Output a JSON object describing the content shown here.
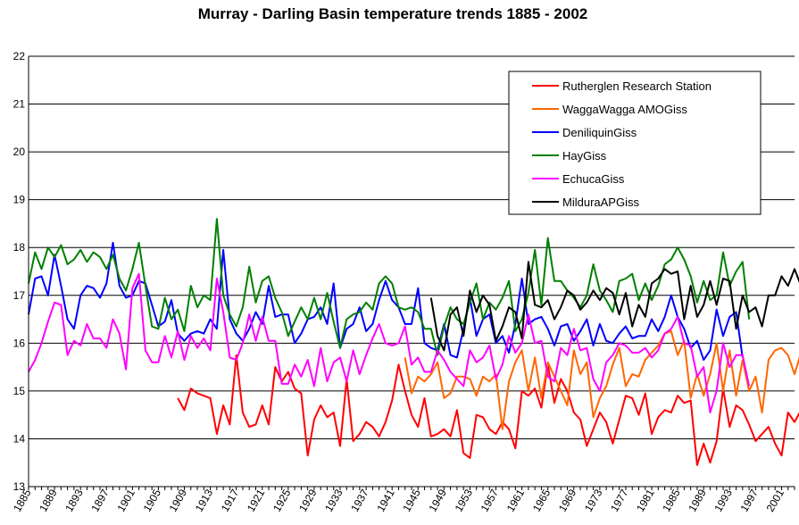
{
  "chart_data": {
    "type": "line",
    "title": "Murray - Darling Basin temperature trends 1885 - 2002",
    "xlabel": "",
    "ylabel": "",
    "ylim": [
      13,
      22
    ],
    "yticks": [
      13,
      14,
      15,
      16,
      17,
      18,
      19,
      20,
      21,
      22
    ],
    "xlim": [
      1885,
      2003
    ],
    "xticks": [
      1885,
      1889,
      1893,
      1897,
      1901,
      1905,
      1909,
      1913,
      1917,
      1921,
      1925,
      1929,
      1933,
      1937,
      1941,
      1945,
      1949,
      1953,
      1957,
      1961,
      1965,
      1969,
      1973,
      1977,
      1981,
      1985,
      1989,
      1993,
      1997,
      2001
    ],
    "xtick_labels": [
      "1885",
      "1889",
      "1893",
      "1897",
      "1901",
      "1905",
      "1909",
      "1913",
      "1917",
      "1921",
      "1925",
      "1929",
      "1933",
      "1937",
      "1941",
      "1945",
      "1949",
      "1953",
      "1957",
      "1961",
      "1965",
      "1969",
      "1973",
      "1977",
      "1981",
      "1985",
      "1989",
      "1993",
      "1997",
      "2001"
    ],
    "grid": true,
    "legend_position": "top-right",
    "series": [
      {
        "name": "Rutherglen Research Station",
        "color": "#ff0000",
        "start": 1908,
        "values": [
          14.85,
          14.6,
          15.05,
          14.95,
          14.9,
          14.85,
          14.1,
          14.7,
          14.3,
          15.75,
          14.55,
          14.25,
          14.3,
          14.7,
          14.3,
          15.5,
          15.2,
          15.4,
          15.05,
          14.95,
          13.65,
          14.4,
          14.7,
          14.45,
          14.55,
          13.85,
          15.25,
          13.95,
          14.1,
          14.35,
          14.25,
          14.05,
          14.35,
          14.8,
          15.55,
          15.0,
          14.5,
          14.25,
          14.85,
          14.05,
          14.1,
          14.2,
          14.05,
          14.6,
          13.7,
          13.6,
          14.5,
          14.45,
          14.2,
          14.1,
          14.35,
          14.2,
          13.8,
          15.0,
          14.9,
          15.05,
          14.65,
          15.55,
          14.75,
          15.25,
          15.0,
          14.55,
          14.4,
          13.85,
          14.2,
          14.55,
          14.35,
          13.9,
          14.4,
          14.9,
          14.85,
          14.5,
          14.95,
          14.1,
          14.45,
          14.6,
          14.55,
          14.9,
          14.75,
          14.8,
          13.45,
          13.9,
          13.5,
          13.95,
          15.05,
          14.25,
          14.7,
          14.6,
          14.3,
          13.95,
          14.1,
          14.25,
          13.9,
          13.65,
          14.55,
          14.35,
          14.6
        ]
      },
      {
        "name": "WaggaWagga AMOGiss",
        "color": "#ff6600",
        "start": 1943,
        "values": [
          15.7,
          14.95,
          15.3,
          15.2,
          15.35,
          15.6,
          14.85,
          14.95,
          15.3,
          15.3,
          15.25,
          14.9,
          15.3,
          15.2,
          15.35,
          14.2,
          15.2,
          15.6,
          15.85,
          15.0,
          15.7,
          14.85,
          15.6,
          15.3,
          15.0,
          14.7,
          15.85,
          15.35,
          15.6,
          14.45,
          14.85,
          15.1,
          15.55,
          15.9,
          15.1,
          15.35,
          15.3,
          15.65,
          15.8,
          15.95,
          16.2,
          16.25,
          15.75,
          16.05,
          14.85,
          15.35,
          14.9,
          15.35,
          16.0,
          15.0,
          15.85,
          14.9,
          15.65,
          15.0,
          15.3,
          14.55,
          15.65,
          15.85,
          15.9,
          15.75,
          15.35,
          15.8,
          15.75
        ]
      },
      {
        "name": "DeniliquinGiss",
        "color": "#0000ff",
        "start": 1885,
        "values": [
          16.6,
          17.35,
          17.4,
          17.0,
          17.85,
          17.2,
          16.5,
          16.3,
          17.0,
          17.2,
          17.15,
          16.95,
          17.25,
          18.1,
          17.2,
          16.95,
          17.0,
          17.3,
          17.25,
          16.8,
          16.35,
          16.45,
          16.9,
          16.2,
          16.05,
          16.2,
          16.25,
          16.2,
          16.5,
          16.3,
          17.95,
          16.5,
          16.2,
          16.05,
          16.3,
          16.65,
          16.4,
          17.2,
          16.55,
          16.6,
          16.6,
          16.0,
          16.2,
          16.5,
          16.55,
          16.75,
          16.4,
          17.25,
          15.9,
          16.3,
          16.4,
          16.75,
          16.25,
          16.4,
          16.9,
          17.3,
          16.9,
          16.75,
          16.4,
          16.4,
          17.15,
          16.0,
          15.9,
          15.85,
          16.4,
          15.75,
          15.7,
          16.3,
          16.95,
          16.15,
          16.5,
          16.6,
          16.0,
          16.15,
          15.8,
          16.4,
          17.35,
          16.4,
          16.5,
          16.55,
          16.3,
          15.95,
          16.35,
          16.4,
          16.05,
          16.25,
          16.5,
          15.95,
          16.4,
          16.05,
          16.0,
          16.2,
          16.35,
          16.1,
          16.15,
          16.15,
          16.5,
          16.25,
          16.55,
          17.0,
          16.55,
          16.3,
          15.9,
          16.05,
          15.65,
          15.85,
          16.7,
          16.15,
          16.55,
          16.65,
          15.7
        ]
      },
      {
        "name": "HayGiss",
        "color": "#008000",
        "start": 1885,
        "values": [
          17.25,
          17.9,
          17.55,
          18.0,
          17.8,
          18.05,
          17.65,
          17.75,
          17.95,
          17.7,
          17.9,
          17.8,
          17.55,
          17.85,
          17.35,
          17.1,
          17.55,
          18.1,
          17.2,
          16.35,
          16.3,
          16.95,
          16.5,
          16.7,
          16.25,
          17.2,
          16.75,
          17.0,
          16.9,
          18.6,
          17.0,
          16.6,
          16.35,
          16.75,
          17.6,
          16.85,
          17.3,
          17.4,
          16.95,
          16.65,
          16.15,
          16.45,
          16.75,
          16.5,
          16.95,
          16.5,
          17.05,
          16.45,
          15.9,
          16.5,
          16.6,
          16.65,
          16.85,
          16.7,
          17.25,
          17.4,
          17.25,
          16.75,
          16.7,
          16.75,
          16.65,
          16.3,
          16.3,
          15.75,
          16.35,
          16.75,
          16.5,
          16.4,
          16.85,
          17.25,
          16.5,
          16.85,
          16.7,
          16.95,
          17.3,
          16.25,
          16.5,
          17.05,
          17.95,
          16.8,
          18.2,
          17.3,
          17.3,
          17.1,
          16.95,
          16.75,
          17.0,
          17.65,
          17.1,
          16.9,
          16.65,
          17.3,
          17.35,
          17.45,
          16.9,
          17.25,
          16.9,
          17.2,
          17.65,
          17.75,
          18.0,
          17.75,
          17.4,
          16.85,
          17.3,
          16.9,
          17.0,
          17.9,
          17.2,
          17.5,
          17.7,
          16.5
        ]
      },
      {
        "name": "EchucaGiss",
        "color": "#ff00ff",
        "start": 1885,
        "values": [
          15.4,
          15.65,
          16.0,
          16.45,
          16.85,
          16.8,
          15.75,
          16.05,
          15.95,
          16.4,
          16.1,
          16.1,
          15.9,
          16.5,
          16.2,
          15.45,
          17.15,
          17.45,
          15.85,
          15.6,
          15.6,
          16.15,
          15.7,
          16.25,
          15.65,
          16.15,
          15.9,
          16.1,
          15.85,
          17.35,
          16.65,
          15.7,
          15.65,
          16.0,
          16.6,
          16.05,
          16.55,
          16.05,
          16.05,
          15.15,
          15.15,
          15.55,
          15.3,
          15.65,
          15.1,
          15.9,
          15.2,
          15.6,
          15.7,
          15.2,
          15.85,
          15.35,
          15.75,
          16.1,
          16.4,
          16.0,
          15.95,
          16.0,
          16.35,
          15.55,
          15.7,
          15.4,
          15.4,
          15.85,
          15.65,
          15.4,
          15.25,
          15.1,
          15.85,
          15.6,
          15.7,
          15.95,
          15.25,
          15.55,
          16.15,
          15.8,
          16.0,
          16.6,
          16.0,
          16.05,
          15.3,
          15.2,
          15.9,
          15.75,
          16.3,
          15.85,
          15.9,
          15.25,
          15.0,
          15.6,
          15.75,
          16.0,
          15.95,
          15.8,
          15.8,
          15.9,
          15.7,
          15.85,
          16.2,
          16.3,
          16.55,
          16.0,
          15.95,
          15.3,
          15.5,
          14.55,
          15.0,
          16.0,
          15.5,
          15.75,
          15.75,
          15.1
        ]
      },
      {
        "name": "MilduraAPGiss",
        "color": "#000000",
        "start": 1947,
        "values": [
          16.95,
          16.15,
          15.85,
          16.6,
          16.75,
          16.15,
          17.1,
          16.65,
          17.0,
          16.8,
          16.05,
          16.35,
          16.75,
          16.65,
          16.1,
          17.7,
          16.8,
          16.75,
          16.9,
          16.5,
          16.75,
          17.1,
          17.0,
          16.7,
          16.85,
          17.1,
          16.9,
          17.15,
          17.05,
          16.6,
          17.05,
          16.35,
          16.8,
          16.55,
          17.25,
          17.35,
          17.55,
          17.45,
          17.5,
          16.5,
          17.2,
          16.55,
          16.8,
          17.3,
          16.8,
          17.35,
          17.3,
          16.3,
          17.0,
          16.65,
          16.75,
          16.35,
          17.0,
          17.0,
          17.4,
          17.2,
          17.55,
          17.2
        ]
      }
    ]
  }
}
